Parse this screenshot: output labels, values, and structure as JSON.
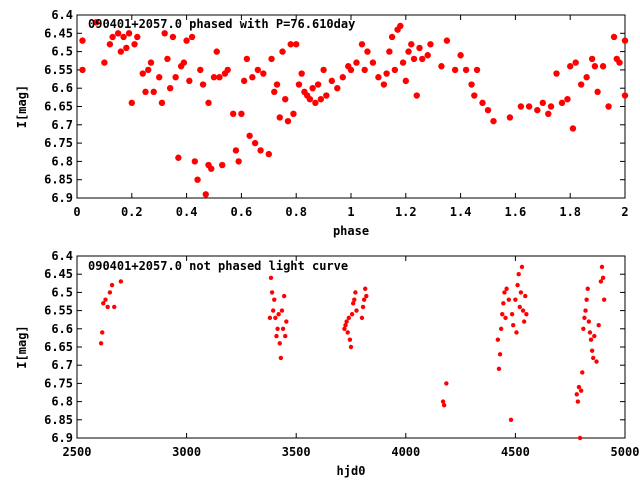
{
  "chart_data": [
    {
      "type": "scatter",
      "title": "090401+2057.0 phased with P=76.610day",
      "xlabel": "phase",
      "ylabel": "I[mag]",
      "xlim": [
        0,
        2
      ],
      "ylim": [
        6.9,
        6.4
      ],
      "y_inverted": true,
      "grid": false,
      "x_ticks": [
        "0",
        "0.2",
        "0.4",
        "0.6",
        "0.8",
        "1",
        "1.2",
        "1.4",
        "1.6",
        "1.8",
        "2"
      ],
      "y_ticks": [
        "6.4",
        "6.45",
        "6.5",
        "6.55",
        "6.6",
        "6.65",
        "6.7",
        "6.75",
        "6.8",
        "6.85",
        "6.9"
      ],
      "marker_color": "#ff0000",
      "series": [
        {
          "points": [
            [
              0.02,
              6.47
            ],
            [
              0.02,
              6.55
            ],
            [
              0.07,
              6.42
            ],
            [
              0.1,
              6.53
            ],
            [
              0.12,
              6.48
            ],
            [
              0.13,
              6.46
            ],
            [
              0.15,
              6.45
            ],
            [
              0.16,
              6.5
            ],
            [
              0.17,
              6.46
            ],
            [
              0.18,
              6.49
            ],
            [
              0.19,
              6.45
            ],
            [
              0.2,
              6.64
            ],
            [
              0.21,
              6.48
            ],
            [
              0.22,
              6.46
            ],
            [
              0.24,
              6.56
            ],
            [
              0.25,
              6.61
            ],
            [
              0.26,
              6.55
            ],
            [
              0.27,
              6.53
            ],
            [
              0.28,
              6.61
            ],
            [
              0.3,
              6.57
            ],
            [
              0.31,
              6.64
            ],
            [
              0.32,
              6.45
            ],
            [
              0.33,
              6.52
            ],
            [
              0.34,
              6.6
            ],
            [
              0.35,
              6.46
            ],
            [
              0.36,
              6.57
            ],
            [
              0.37,
              6.79
            ],
            [
              0.38,
              6.54
            ],
            [
              0.39,
              6.53
            ],
            [
              0.4,
              6.47
            ],
            [
              0.41,
              6.58
            ],
            [
              0.42,
              6.46
            ],
            [
              0.43,
              6.8
            ],
            [
              0.44,
              6.85
            ],
            [
              0.45,
              6.55
            ],
            [
              0.46,
              6.59
            ],
            [
              0.47,
              6.89
            ],
            [
              0.48,
              6.64
            ],
            [
              0.48,
              6.81
            ],
            [
              0.49,
              6.82
            ],
            [
              0.5,
              6.57
            ],
            [
              0.51,
              6.5
            ],
            [
              0.52,
              6.57
            ],
            [
              0.53,
              6.81
            ],
            [
              0.54,
              6.56
            ],
            [
              0.55,
              6.55
            ],
            [
              0.57,
              6.67
            ],
            [
              0.58,
              6.77
            ],
            [
              0.59,
              6.8
            ],
            [
              0.6,
              6.67
            ],
            [
              0.61,
              6.58
            ],
            [
              0.62,
              6.52
            ],
            [
              0.63,
              6.73
            ],
            [
              0.64,
              6.57
            ],
            [
              0.65,
              6.75
            ],
            [
              0.66,
              6.55
            ],
            [
              0.67,
              6.77
            ],
            [
              0.68,
              6.56
            ],
            [
              0.7,
              6.78
            ],
            [
              0.71,
              6.52
            ],
            [
              0.72,
              6.61
            ],
            [
              0.73,
              6.59
            ],
            [
              0.74,
              6.68
            ],
            [
              0.75,
              6.5
            ],
            [
              0.76,
              6.63
            ],
            [
              0.77,
              6.69
            ],
            [
              0.78,
              6.48
            ],
            [
              0.79,
              6.67
            ],
            [
              0.8,
              6.48
            ],
            [
              0.81,
              6.59
            ],
            [
              0.82,
              6.56
            ],
            [
              0.83,
              6.61
            ],
            [
              0.84,
              6.62
            ],
            [
              0.85,
              6.63
            ],
            [
              0.86,
              6.6
            ],
            [
              0.87,
              6.64
            ],
            [
              0.88,
              6.59
            ],
            [
              0.89,
              6.63
            ],
            [
              0.9,
              6.55
            ],
            [
              0.91,
              6.62
            ],
            [
              0.93,
              6.58
            ],
            [
              0.95,
              6.6
            ],
            [
              0.97,
              6.57
            ],
            [
              0.99,
              6.54
            ],
            [
              1.0,
              6.55
            ],
            [
              1.02,
              6.53
            ],
            [
              1.04,
              6.48
            ],
            [
              1.05,
              6.55
            ],
            [
              1.06,
              6.5
            ],
            [
              1.08,
              6.53
            ],
            [
              1.1,
              6.57
            ],
            [
              1.12,
              6.59
            ],
            [
              1.13,
              6.56
            ],
            [
              1.14,
              6.5
            ],
            [
              1.15,
              6.46
            ],
            [
              1.16,
              6.55
            ],
            [
              1.17,
              6.44
            ],
            [
              1.18,
              6.43
            ],
            [
              1.19,
              6.53
            ],
            [
              1.2,
              6.58
            ],
            [
              1.21,
              6.5
            ],
            [
              1.22,
              6.48
            ],
            [
              1.23,
              6.52
            ],
            [
              1.24,
              6.62
            ],
            [
              1.25,
              6.49
            ],
            [
              1.26,
              6.52
            ],
            [
              1.28,
              6.51
            ],
            [
              1.29,
              6.48
            ],
            [
              1.33,
              6.54
            ],
            [
              1.35,
              6.47
            ],
            [
              1.38,
              6.55
            ],
            [
              1.4,
              6.51
            ],
            [
              1.42,
              6.55
            ],
            [
              1.44,
              6.59
            ],
            [
              1.45,
              6.62
            ],
            [
              1.46,
              6.55
            ],
            [
              1.48,
              6.64
            ],
            [
              1.5,
              6.66
            ],
            [
              1.52,
              6.69
            ],
            [
              1.58,
              6.68
            ],
            [
              1.62,
              6.65
            ],
            [
              1.65,
              6.65
            ],
            [
              1.68,
              6.66
            ],
            [
              1.7,
              6.64
            ],
            [
              1.72,
              6.67
            ],
            [
              1.73,
              6.65
            ],
            [
              1.75,
              6.56
            ],
            [
              1.77,
              6.64
            ],
            [
              1.79,
              6.63
            ],
            [
              1.8,
              6.54
            ],
            [
              1.81,
              6.71
            ],
            [
              1.82,
              6.53
            ],
            [
              1.84,
              6.59
            ],
            [
              1.86,
              6.57
            ],
            [
              1.88,
              6.52
            ],
            [
              1.89,
              6.54
            ],
            [
              1.9,
              6.61
            ],
            [
              1.92,
              6.54
            ],
            [
              1.94,
              6.65
            ],
            [
              1.96,
              6.46
            ],
            [
              1.97,
              6.52
            ],
            [
              1.98,
              6.53
            ],
            [
              2.0,
              6.47
            ],
            [
              2.0,
              6.62
            ]
          ]
        }
      ]
    },
    {
      "type": "scatter",
      "title": "090401+2057.0 not phased light curve",
      "xlabel": "hjd0",
      "ylabel": "I[mag]",
      "xlim": [
        2500,
        5000
      ],
      "ylim": [
        6.9,
        6.4
      ],
      "y_inverted": true,
      "grid": false,
      "x_ticks": [
        "2500",
        "3000",
        "3500",
        "4000",
        "4500",
        "5000"
      ],
      "y_ticks": [
        "6.4",
        "6.45",
        "6.5",
        "6.55",
        "6.6",
        "6.65",
        "6.7",
        "6.75",
        "6.8",
        "6.85",
        "6.9"
      ],
      "marker_color": "#ff0000",
      "series": [
        {
          "points": [
            [
              2610,
              6.64
            ],
            [
              2615,
              6.61
            ],
            [
              2620,
              6.53
            ],
            [
              2630,
              6.52
            ],
            [
              2640,
              6.54
            ],
            [
              2650,
              6.5
            ],
            [
              2660,
              6.48
            ],
            [
              2670,
              6.54
            ],
            [
              2700,
              6.47
            ],
            [
              3380,
              6.57
            ],
            [
              3385,
              6.46
            ],
            [
              3390,
              6.5
            ],
            [
              3395,
              6.55
            ],
            [
              3400,
              6.52
            ],
            [
              3405,
              6.57
            ],
            [
              3410,
              6.62
            ],
            [
              3415,
              6.6
            ],
            [
              3420,
              6.56
            ],
            [
              3425,
              6.64
            ],
            [
              3430,
              6.68
            ],
            [
              3435,
              6.55
            ],
            [
              3440,
              6.6
            ],
            [
              3445,
              6.51
            ],
            [
              3450,
              6.62
            ],
            [
              3455,
              6.58
            ],
            [
              3720,
              6.6
            ],
            [
              3725,
              6.59
            ],
            [
              3730,
              6.58
            ],
            [
              3735,
              6.61
            ],
            [
              3740,
              6.57
            ],
            [
              3745,
              6.63
            ],
            [
              3750,
              6.65
            ],
            [
              3755,
              6.56
            ],
            [
              3760,
              6.53
            ],
            [
              3765,
              6.52
            ],
            [
              3770,
              6.5
            ],
            [
              3775,
              6.55
            ],
            [
              3800,
              6.57
            ],
            [
              3805,
              6.54
            ],
            [
              3810,
              6.52
            ],
            [
              3815,
              6.49
            ],
            [
              3820,
              6.51
            ],
            [
              4170,
              6.8
            ],
            [
              4175,
              6.81
            ],
            [
              4185,
              6.75
            ],
            [
              4420,
              6.63
            ],
            [
              4425,
              6.71
            ],
            [
              4430,
              6.67
            ],
            [
              4435,
              6.6
            ],
            [
              4440,
              6.56
            ],
            [
              4445,
              6.53
            ],
            [
              4450,
              6.5
            ],
            [
              4455,
              6.57
            ],
            [
              4460,
              6.49
            ],
            [
              4470,
              6.52
            ],
            [
              4480,
              6.85
            ],
            [
              4485,
              6.56
            ],
            [
              4490,
              6.59
            ],
            [
              4500,
              6.52
            ],
            [
              4505,
              6.61
            ],
            [
              4510,
              6.48
            ],
            [
              4515,
              6.45
            ],
            [
              4520,
              6.54
            ],
            [
              4525,
              6.5
            ],
            [
              4530,
              6.43
            ],
            [
              4535,
              6.55
            ],
            [
              4540,
              6.58
            ],
            [
              4545,
              6.51
            ],
            [
              4550,
              6.56
            ],
            [
              4780,
              6.78
            ],
            [
              4785,
              6.8
            ],
            [
              4790,
              6.76
            ],
            [
              4795,
              6.9
            ],
            [
              4800,
              6.77
            ],
            [
              4805,
              6.72
            ],
            [
              4810,
              6.6
            ],
            [
              4815,
              6.57
            ],
            [
              4820,
              6.55
            ],
            [
              4825,
              6.52
            ],
            [
              4830,
              6.49
            ],
            [
              4835,
              6.58
            ],
            [
              4840,
              6.61
            ],
            [
              4845,
              6.63
            ],
            [
              4850,
              6.66
            ],
            [
              4855,
              6.68
            ],
            [
              4860,
              6.62
            ],
            [
              4870,
              6.69
            ],
            [
              4880,
              6.59
            ],
            [
              4890,
              6.47
            ],
            [
              4895,
              6.43
            ],
            [
              4900,
              6.46
            ],
            [
              4905,
              6.52
            ]
          ]
        }
      ]
    }
  ]
}
